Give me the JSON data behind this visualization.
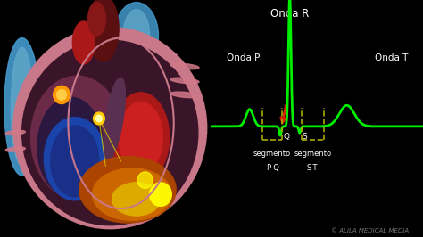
{
  "background_color": "#000000",
  "ecg_color": "#00ee00",
  "ecg_linewidth": 2.0,
  "arrow_color": "#dd2200",
  "box_color": "#aaaa00",
  "text_color": "#ffffff",
  "copyright_color": "#777777",
  "labels": {
    "onda_r": "Onda R",
    "onda_p": "Onda P",
    "onda_t": "Onda T",
    "q_label": "Q",
    "s_label": "S",
    "seg_pq_1": "segmento",
    "seg_pq_2": "P-Q",
    "seg_st_1": "segmento",
    "seg_st_2": "S-T",
    "copyright": "© ALILA MEDICAL MEDIA"
  },
  "heart_colors": {
    "outer_pink": "#c87888",
    "body_dark": "#3a1428",
    "right_atrium": "#6a2a48",
    "left_ventricle_red": "#cc2020",
    "right_ventricle_blue": "#1a44aa",
    "blue_fill": "#1a3a99",
    "orange_bottom": "#cc6600",
    "yellow_bottom": "#ddaa00",
    "aorta_dark": "#5a1010",
    "aorta_red": "#881818",
    "blue_vessel": "#4499cc",
    "blue_vessel2": "#66aacc",
    "sa_node": "#ff9900",
    "av_node": "#ffcc00",
    "bright_yellow": "#ffff00",
    "pink_vessel": "#d07888",
    "septum": "#5a3050"
  }
}
